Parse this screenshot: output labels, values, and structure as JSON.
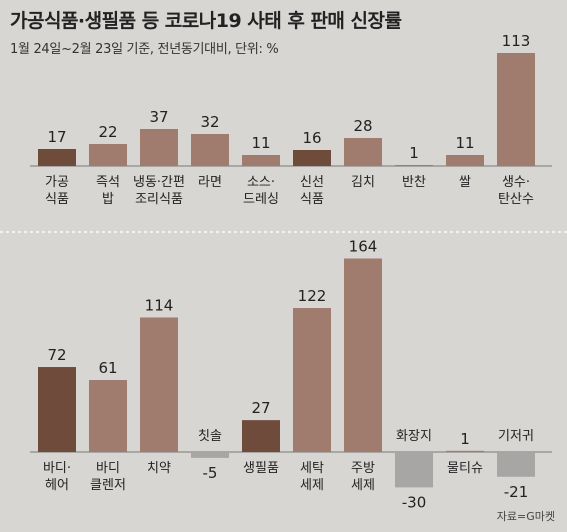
{
  "title": "가공식품·생필품 등 코로나19 사태 후 판매 신장률",
  "subtitle": "1월 24일~2월 23일 기준, 전년동기대비, 단위: %",
  "source": "자료=G마켓",
  "colors": {
    "dark": "#6e4b3a",
    "light": "#a07c6f",
    "negative": "#a8a6a4",
    "baseline": "#7a7876",
    "divider": "#f2f2f2"
  },
  "chart_data": [
    {
      "type": "bar",
      "categories": [
        [
          "가공",
          "식품"
        ],
        [
          "즉석",
          "밥"
        ],
        [
          "냉동·간편",
          "조리식품"
        ],
        [
          "라면"
        ],
        [
          "소스·",
          "드레싱"
        ],
        [
          "신선",
          "식품"
        ],
        [
          "김치"
        ],
        [
          "반찬"
        ],
        [
          "쌀"
        ],
        [
          "생수·",
          "탄산수"
        ]
      ],
      "values": [
        17,
        22,
        37,
        32,
        11,
        16,
        28,
        1,
        11,
        113
      ],
      "highlight": [
        0,
        5
      ],
      "ylim": [
        0,
        113
      ]
    },
    {
      "type": "bar",
      "categories": [
        [
          "바디·",
          "헤어"
        ],
        [
          "바디",
          "클렌저"
        ],
        [
          "치약"
        ],
        [
          "칫솔"
        ],
        [
          "생필품"
        ],
        [
          "세탁",
          "세제"
        ],
        [
          "주방",
          "세제"
        ],
        [
          "화장지"
        ],
        [
          "물티슈"
        ],
        [
          "기저귀"
        ]
      ],
      "values": [
        72,
        61,
        114,
        -5,
        27,
        122,
        164,
        -30,
        1,
        -21
      ],
      "highlight": [
        0,
        4
      ],
      "ylim": [
        -30,
        164
      ]
    }
  ]
}
